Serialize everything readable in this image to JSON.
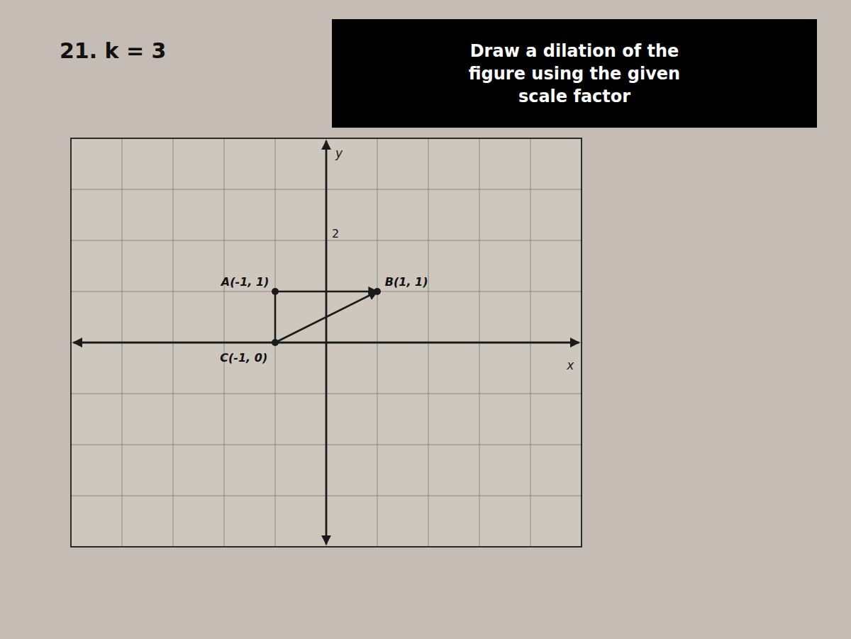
{
  "chart_data": {
    "type": "scatter",
    "title": "21. k = 3",
    "annotation": "Draw a dilation of the\nfigure using the given\nscale factor",
    "x_label": "x",
    "y_label": "y",
    "x": [
      -1,
      1,
      -1
    ],
    "values": [
      1,
      1,
      0
    ],
    "value_labels": [
      "A(-1, 1)",
      "B(1, 1)",
      "C(-1, 0)"
    ],
    "data_labels": true,
    "color": "#1a1a1a",
    "xlim": [
      -5,
      5
    ],
    "ylim": [
      -4,
      4
    ],
    "xticks": [
      -5,
      -4,
      -3,
      -2,
      -1,
      0,
      1,
      2,
      3,
      4,
      5
    ],
    "yticks": [
      {
        "value": -4,
        "label": null
      },
      {
        "value": -3,
        "label": null
      },
      {
        "value": -2,
        "label": null
      },
      {
        "value": -1,
        "label": null
      },
      {
        "value": 0,
        "label": null
      },
      {
        "value": 1,
        "label": null
      },
      {
        "value": 2,
        "label": "2"
      },
      {
        "value": 3,
        "label": null
      },
      {
        "value": 4,
        "label": null
      }
    ],
    "tick_labels": "y",
    "grid": true
  }
}
